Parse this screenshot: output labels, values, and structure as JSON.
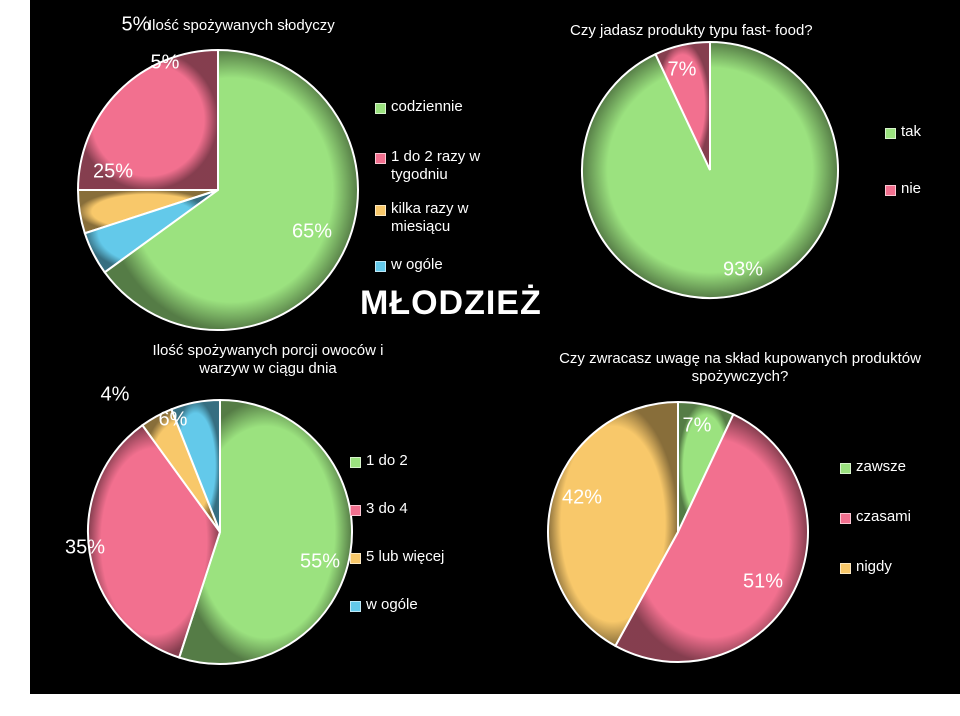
{
  "slide_title": "MŁODZIEŻ",
  "chart_data": [
    {
      "type": "pie",
      "title": "Ilość spożywanych słodyczy",
      "categories": [
        "codziennie",
        "1 do 2 razy w tygodniu",
        "kilka razy w miesiącu",
        "w ogóle"
      ],
      "values": [
        65,
        25,
        5,
        5
      ],
      "value_labels": [
        "65%",
        "25%",
        "5%",
        "5%"
      ],
      "colors": [
        "#9be27f",
        "#f2708f",
        "#f8c86a",
        "#63c9ea"
      ],
      "legend_position": "right"
    },
    {
      "type": "pie",
      "title": "Czy jadasz produkty typu fast- food?",
      "categories": [
        "tak",
        "nie"
      ],
      "values": [
        93,
        7
      ],
      "value_labels": [
        "93%",
        "7%"
      ],
      "colors": [
        "#9be27f",
        "#f2708f"
      ],
      "legend_position": "right"
    },
    {
      "type": "pie",
      "title": "Ilość spożywanych porcji owoców i warzyw w ciągu dnia",
      "categories": [
        "1 do 2",
        "3 do 4",
        "5 lub więcej",
        "w ogóle"
      ],
      "values": [
        55,
        35,
        4,
        6
      ],
      "value_labels": [
        "55%",
        "35%",
        "4%",
        "6%"
      ],
      "colors": [
        "#9be27f",
        "#f2708f",
        "#f8c86a",
        "#63c9ea"
      ],
      "legend_position": "right"
    },
    {
      "type": "pie",
      "title": "Czy zwracasz uwagę na skład kupowanych produktów spożywczych?",
      "categories": [
        "zawsze",
        "czasami",
        "nigdy"
      ],
      "values": [
        7,
        51,
        42
      ],
      "value_labels": [
        "7%",
        "51%",
        "42%"
      ],
      "colors": [
        "#9be27f",
        "#f2708f",
        "#f8c86a"
      ],
      "legend_position": "right"
    }
  ]
}
